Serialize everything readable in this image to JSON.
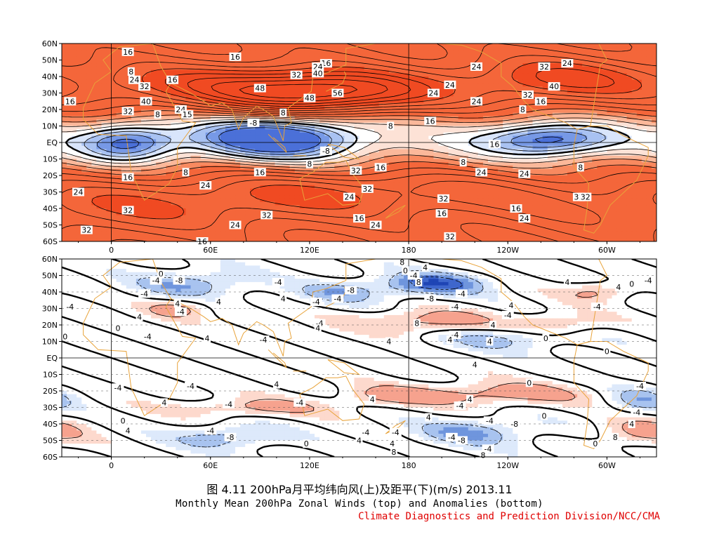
{
  "figure": {
    "caption_cn": "图 4.11  200hPa月平均纬向风(上)及距平(下)(m/s)  2013.11",
    "caption_en": "Monthly Mean 200hPa Zonal Winds (top) and Anomalies (bottom)",
    "organization": "Climate Diagnostics and Prediction Division/NCC/CMA"
  },
  "colors": {
    "coast": "#e8a33a",
    "shade_top": [
      "#f04a22",
      "#f4663a",
      "#f88a60",
      "#fbb89a",
      "#fde2d6",
      "#ffffff",
      "#d9e5fb",
      "#a9c2f2",
      "#7799e6",
      "#4b70d8"
    ],
    "shade_bottom": [
      "#ec6f58",
      "#f6a28e",
      "#fdd9cd",
      "#ffffff",
      "#dde9fb",
      "#a8c3ef",
      "#6f95dd",
      "#3f67cc",
      "#1f45b5"
    ]
  },
  "chart_data": [
    {
      "type": "contour",
      "panel": "top",
      "variable": "zonal wind",
      "xlabel": "",
      "ylabel": "",
      "x_ticks": [
        "0",
        "60E",
        "120E",
        "180",
        "120W",
        "60W"
      ],
      "y_ticks": [
        "60N",
        "50N",
        "40N",
        "30N",
        "20N",
        "10N",
        "EQ",
        "10S",
        "20S",
        "30S",
        "40S",
        "50S",
        "60S"
      ],
      "x_range": [
        -30,
        330
      ],
      "y_range": [
        -60,
        60
      ],
      "contour_labels": [
        {
          "lon": -25,
          "lat": 25,
          "text": "16"
        },
        {
          "lon": 10,
          "lat": 55,
          "text": "16"
        },
        {
          "lon": 75,
          "lat": 52,
          "text": "16"
        },
        {
          "lon": 130,
          "lat": 48,
          "text": "16"
        },
        {
          "lon": 125,
          "lat": 46,
          "text": "24"
        },
        {
          "lon": 125,
          "lat": 42,
          "text": "40"
        },
        {
          "lon": 112,
          "lat": 41,
          "text": "32"
        },
        {
          "lon": 12,
          "lat": 43,
          "text": "8"
        },
        {
          "lon": 14,
          "lat": 38,
          "text": "24"
        },
        {
          "lon": 20,
          "lat": 34,
          "text": "32"
        },
        {
          "lon": 37,
          "lat": 38,
          "text": "16"
        },
        {
          "lon": 90,
          "lat": 33,
          "text": "48"
        },
        {
          "lon": 137,
          "lat": 30,
          "text": "56"
        },
        {
          "lon": 120,
          "lat": 27,
          "text": "48"
        },
        {
          "lon": 10,
          "lat": 19,
          "text": "32"
        },
        {
          "lon": 21,
          "lat": 25,
          "text": "40"
        },
        {
          "lon": 28,
          "lat": 17,
          "text": "8"
        },
        {
          "lon": 42,
          "lat": 20,
          "text": "24"
        },
        {
          "lon": 46,
          "lat": 17,
          "text": "15"
        },
        {
          "lon": 104,
          "lat": 18,
          "text": "8"
        },
        {
          "lon": 86,
          "lat": 12,
          "text": "-8"
        },
        {
          "lon": 195,
          "lat": 30,
          "text": "24"
        },
        {
          "lon": 205,
          "lat": 35,
          "text": "24"
        },
        {
          "lon": 221,
          "lat": 46,
          "text": "24"
        },
        {
          "lon": 221,
          "lat": 25,
          "text": "24"
        },
        {
          "lon": 193,
          "lat": 13,
          "text": "16"
        },
        {
          "lon": 169,
          "lat": 10,
          "text": "8"
        },
        {
          "lon": 262,
          "lat": 46,
          "text": "32"
        },
        {
          "lon": 276,
          "lat": 48,
          "text": "24"
        },
        {
          "lon": 268,
          "lat": 34,
          "text": "40"
        },
        {
          "lon": 252,
          "lat": 29,
          "text": "32"
        },
        {
          "lon": 260,
          "lat": 25,
          "text": "16"
        },
        {
          "lon": 249,
          "lat": 20,
          "text": "8"
        },
        {
          "lon": 130,
          "lat": -5,
          "text": "-8"
        },
        {
          "lon": 232,
          "lat": -1,
          "text": "16"
        },
        {
          "lon": 213,
          "lat": -12,
          "text": "8"
        },
        {
          "lon": 284,
          "lat": -15,
          "text": "8"
        },
        {
          "lon": 90,
          "lat": -18,
          "text": "16"
        },
        {
          "lon": 45,
          "lat": -18,
          "text": "8"
        },
        {
          "lon": 10,
          "lat": -21,
          "text": "16"
        },
        {
          "lon": 120,
          "lat": -13,
          "text": "8"
        },
        {
          "lon": 163,
          "lat": -15,
          "text": "16"
        },
        {
          "lon": 148,
          "lat": -17,
          "text": "32"
        },
        {
          "lon": -20,
          "lat": -30,
          "text": "24"
        },
        {
          "lon": 57,
          "lat": -26,
          "text": "24"
        },
        {
          "lon": 144,
          "lat": -33,
          "text": "24"
        },
        {
          "lon": 155,
          "lat": -28,
          "text": "32"
        },
        {
          "lon": 201,
          "lat": -34,
          "text": "32"
        },
        {
          "lon": 224,
          "lat": -18,
          "text": "24"
        },
        {
          "lon": 250,
          "lat": -19,
          "text": "24"
        },
        {
          "lon": 10,
          "lat": -41,
          "text": "32"
        },
        {
          "lon": 94,
          "lat": -44,
          "text": "32"
        },
        {
          "lon": 150,
          "lat": -46,
          "text": "16"
        },
        {
          "lon": 200,
          "lat": -43,
          "text": "16"
        },
        {
          "lon": 75,
          "lat": -50,
          "text": "24"
        },
        {
          "lon": -15,
          "lat": -53,
          "text": "32"
        },
        {
          "lon": 160,
          "lat": -50,
          "text": "24"
        },
        {
          "lon": 245,
          "lat": -40,
          "text": "16"
        },
        {
          "lon": 250,
          "lat": -46,
          "text": "24"
        },
        {
          "lon": 283,
          "lat": -33,
          "text": "32"
        },
        {
          "lon": 287,
          "lat": -33,
          "text": "32"
        },
        {
          "lon": 205,
          "lat": -57,
          "text": "32"
        },
        {
          "lon": 55,
          "lat": -60,
          "text": "16"
        }
      ]
    },
    {
      "type": "contour",
      "panel": "bottom",
      "variable": "zonal wind anomaly",
      "xlabel": "",
      "ylabel": "",
      "x_ticks": [
        "0",
        "60E",
        "120E",
        "180",
        "120W",
        "60W"
      ],
      "y_ticks": [
        "60N",
        "50N",
        "40N",
        "30N",
        "20N",
        "10N",
        "EQ",
        "10S",
        "20S",
        "30S",
        "40S",
        "50S",
        "60S"
      ],
      "x_range": [
        -30,
        330
      ],
      "y_range": [
        -60,
        60
      ],
      "contour_labels": [
        {
          "lon": 176,
          "lat": 58,
          "text": "8"
        },
        {
          "lon": 178,
          "lat": 53,
          "text": "0"
        },
        {
          "lon": 190,
          "lat": 55,
          "text": "4"
        },
        {
          "lon": 183,
          "lat": 50,
          "text": "-4"
        },
        {
          "lon": 186,
          "lat": 46,
          "text": "8"
        },
        {
          "lon": 30,
          "lat": 51,
          "text": "0"
        },
        {
          "lon": 27,
          "lat": 47,
          "text": "-4"
        },
        {
          "lon": 41,
          "lat": 47,
          "text": "-8"
        },
        {
          "lon": 20,
          "lat": 39,
          "text": "-4"
        },
        {
          "lon": -25,
          "lat": 31,
          "text": "-4"
        },
        {
          "lon": 40,
          "lat": 33,
          "text": "4"
        },
        {
          "lon": 42,
          "lat": 28,
          "text": "-4"
        },
        {
          "lon": 17,
          "lat": 25,
          "text": "4"
        },
        {
          "lon": 101,
          "lat": 46,
          "text": "-4"
        },
        {
          "lon": 145,
          "lat": 41,
          "text": "-8"
        },
        {
          "lon": 137,
          "lat": 36,
          "text": "-4"
        },
        {
          "lon": 193,
          "lat": 36,
          "text": "-8"
        },
        {
          "lon": 212,
          "lat": 39,
          "text": "-4"
        },
        {
          "lon": 208,
          "lat": 31,
          "text": "-4"
        },
        {
          "lon": 242,
          "lat": 32,
          "text": "4"
        },
        {
          "lon": 240,
          "lat": 26,
          "text": "-4"
        },
        {
          "lon": 294,
          "lat": 31,
          "text": "-4"
        },
        {
          "lon": 307,
          "lat": 43,
          "text": "4"
        },
        {
          "lon": 276,
          "lat": 46,
          "text": "4"
        },
        {
          "lon": 315,
          "lat": 45,
          "text": "0"
        },
        {
          "lon": 325,
          "lat": 47,
          "text": "-4"
        },
        {
          "lon": 65,
          "lat": 34,
          "text": "4"
        },
        {
          "lon": 104,
          "lat": 36,
          "text": "4"
        },
        {
          "lon": 124,
          "lat": 34,
          "text": "-4"
        },
        {
          "lon": 126,
          "lat": 21,
          "text": "-4"
        },
        {
          "lon": 125,
          "lat": 18,
          "text": "4"
        },
        {
          "lon": -28,
          "lat": 13,
          "text": "0"
        },
        {
          "lon": 4,
          "lat": 18,
          "text": "0"
        },
        {
          "lon": 22,
          "lat": 13,
          "text": "-4"
        },
        {
          "lon": 58,
          "lat": 12,
          "text": "4"
        },
        {
          "lon": 92,
          "lat": 11,
          "text": "-4"
        },
        {
          "lon": 168,
          "lat": 10,
          "text": "4"
        },
        {
          "lon": 185,
          "lat": 21,
          "text": "8"
        },
        {
          "lon": 231,
          "lat": 20,
          "text": "4"
        },
        {
          "lon": 208,
          "lat": 14,
          "text": "-4"
        },
        {
          "lon": 205,
          "lat": 11,
          "text": "4"
        },
        {
          "lon": 229,
          "lat": 10,
          "text": "4"
        },
        {
          "lon": 263,
          "lat": 12,
          "text": "0"
        },
        {
          "lon": 300,
          "lat": 4,
          "text": "0"
        },
        {
          "lon": 48,
          "lat": -17,
          "text": "-4"
        },
        {
          "lon": 4,
          "lat": -18,
          "text": "-4"
        },
        {
          "lon": 100,
          "lat": -16,
          "text": "4"
        },
        {
          "lon": 220,
          "lat": -4,
          "text": "4"
        },
        {
          "lon": 253,
          "lat": -15,
          "text": "0"
        },
        {
          "lon": 320,
          "lat": -17,
          "text": "-4"
        },
        {
          "lon": 32,
          "lat": -27,
          "text": "4"
        },
        {
          "lon": 71,
          "lat": -28,
          "text": "-4"
        },
        {
          "lon": 114,
          "lat": -27,
          "text": "-4"
        },
        {
          "lon": 158,
          "lat": -25,
          "text": "4"
        },
        {
          "lon": 217,
          "lat": -25,
          "text": "4"
        },
        {
          "lon": 211,
          "lat": -29,
          "text": "-4"
        },
        {
          "lon": 192,
          "lat": -36,
          "text": "4"
        },
        {
          "lon": 229,
          "lat": -38,
          "text": "-4"
        },
        {
          "lon": 244,
          "lat": -40,
          "text": "-8"
        },
        {
          "lon": 7,
          "lat": -38,
          "text": "0"
        },
        {
          "lon": 10,
          "lat": -44,
          "text": "4"
        },
        {
          "lon": 60,
          "lat": -44,
          "text": "-4"
        },
        {
          "lon": 72,
          "lat": -48,
          "text": "-8"
        },
        {
          "lon": 154,
          "lat": -45,
          "text": "-4"
        },
        {
          "lon": 150,
          "lat": -50,
          "text": "4"
        },
        {
          "lon": 172,
          "lat": -45,
          "text": "-4"
        },
        {
          "lon": 206,
          "lat": -48,
          "text": "-4"
        },
        {
          "lon": 212,
          "lat": -50,
          "text": "-8"
        },
        {
          "lon": 315,
          "lat": -40,
          "text": "4"
        },
        {
          "lon": 318,
          "lat": -33,
          "text": "-4"
        },
        {
          "lon": 262,
          "lat": -35,
          "text": "0"
        },
        {
          "lon": 118,
          "lat": -52,
          "text": "0"
        },
        {
          "lon": 170,
          "lat": -52,
          "text": "4"
        },
        {
          "lon": 171,
          "lat": -57,
          "text": "8"
        },
        {
          "lon": 228,
          "lat": -55,
          "text": "-4"
        },
        {
          "lon": 225,
          "lat": -59,
          "text": "8"
        },
        {
          "lon": 305,
          "lat": -48,
          "text": "8"
        },
        {
          "lon": 293,
          "lat": -52,
          "text": "0"
        }
      ]
    }
  ]
}
